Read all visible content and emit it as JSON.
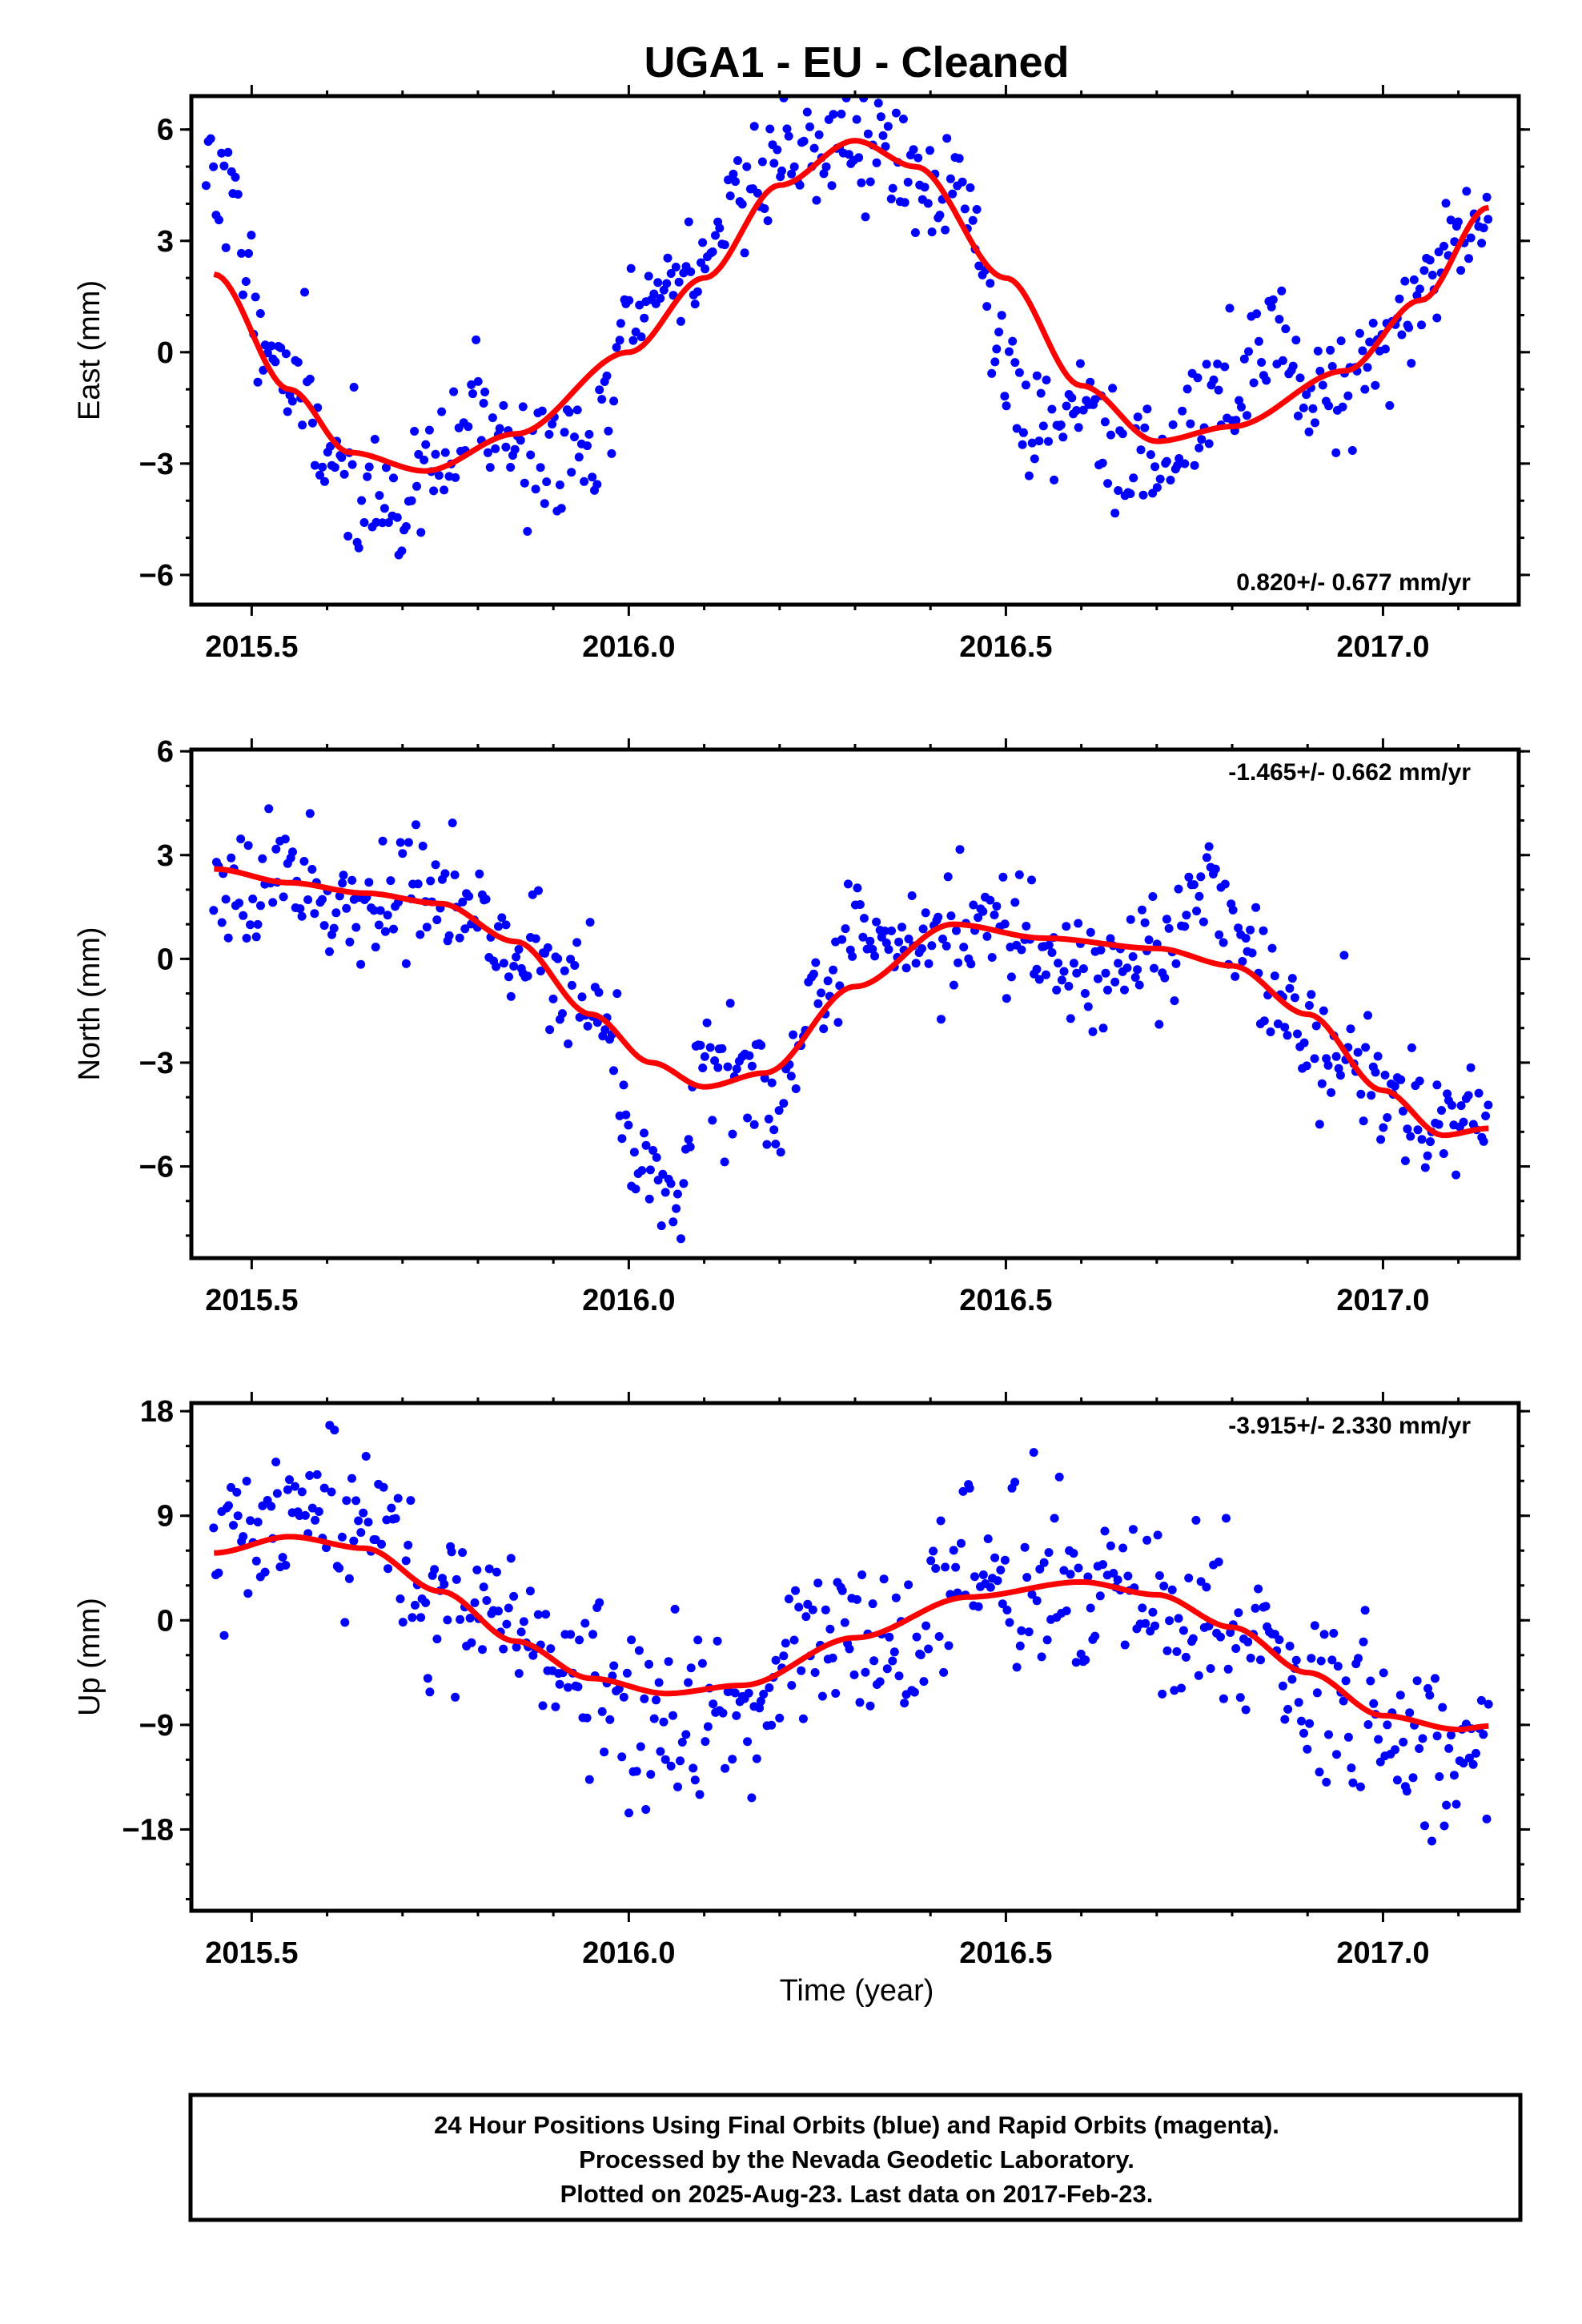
{
  "title": "UGA1  - EU - Cleaned",
  "chart_data": [
    {
      "type": "scatter",
      "xlabel": "",
      "ylabel": "East (mm)",
      "xlim": [
        2015.42,
        2017.18
      ],
      "ylim": [
        -6.8,
        6.9
      ],
      "xticks": [
        "2015.5",
        "2016.0",
        "2016.5",
        "2017.0"
      ],
      "yticks": [
        "6",
        "3",
        "0",
        "−3",
        "−6"
      ],
      "ytick_values": [
        6,
        3,
        0,
        -3,
        -6
      ],
      "rate_text": "0.820+/- 0.677 mm/yr",
      "rate_position": "bottom-right",
      "grid": false,
      "points_color": "#0000ff",
      "fit_color": "#ff0000",
      "fit_knots": [
        [
          2015.45,
          2.1
        ],
        [
          2015.55,
          -1.0
        ],
        [
          2015.63,
          -2.7
        ],
        [
          2015.73,
          -3.2
        ],
        [
          2015.85,
          -2.2
        ],
        [
          2016.0,
          0.0
        ],
        [
          2016.1,
          2.0
        ],
        [
          2016.2,
          4.5
        ],
        [
          2016.3,
          5.7
        ],
        [
          2016.38,
          5.0
        ],
        [
          2016.5,
          2.0
        ],
        [
          2016.6,
          -0.9
        ],
        [
          2016.7,
          -2.4
        ],
        [
          2016.8,
          -2.0
        ],
        [
          2016.95,
          -0.5
        ],
        [
          2017.05,
          1.4
        ],
        [
          2017.14,
          3.9
        ]
      ],
      "point_knots": [
        [
          2015.44,
          5.3
        ],
        [
          2015.47,
          4.3
        ],
        [
          2015.5,
          1.5
        ],
        [
          2015.55,
          -0.8
        ],
        [
          2015.6,
          -2.5
        ],
        [
          2015.65,
          -3.8
        ],
        [
          2015.7,
          -4.2
        ],
        [
          2015.75,
          -3.2
        ],
        [
          2015.8,
          -1.5
        ],
        [
          2015.85,
          -2.6
        ],
        [
          2015.9,
          -2.9
        ],
        [
          2015.95,
          -2.7
        ],
        [
          2016.0,
          0.7
        ],
        [
          2016.05,
          1.8
        ],
        [
          2016.1,
          2.5
        ],
        [
          2016.15,
          4.5
        ],
        [
          2016.2,
          5.3
        ],
        [
          2016.25,
          5.5
        ],
        [
          2016.3,
          5.7
        ],
        [
          2016.35,
          5.2
        ],
        [
          2016.4,
          4.4
        ],
        [
          2016.45,
          3.8
        ],
        [
          2016.5,
          -0.5
        ],
        [
          2016.55,
          -2.2
        ],
        [
          2016.6,
          -1.0
        ],
        [
          2016.65,
          -3.0
        ],
        [
          2016.7,
          -3.4
        ],
        [
          2016.75,
          -1.8
        ],
        [
          2016.8,
          -1.2
        ],
        [
          2016.85,
          0.5
        ],
        [
          2016.9,
          -0.7
        ],
        [
          2016.95,
          -0.8
        ],
        [
          2017.0,
          0.2
        ],
        [
          2017.05,
          1.5
        ],
        [
          2017.1,
          3.5
        ],
        [
          2017.14,
          3.3
        ]
      ],
      "scatter_spread": 0.85,
      "n_points": 520,
      "seed": 11
    },
    {
      "type": "scatter",
      "xlabel": "",
      "ylabel": "North (mm)",
      "xlim": [
        2015.42,
        2017.18
      ],
      "ylim": [
        -8.65,
        6.05
      ],
      "xticks": [
        "2015.5",
        "2016.0",
        "2016.5",
        "2017.0"
      ],
      "yticks": [
        "6",
        "3",
        "0",
        "−3",
        "−6"
      ],
      "ytick_values": [
        6,
        3,
        0,
        -3,
        -6
      ],
      "rate_text": "-1.465+/- 0.662 mm/yr",
      "rate_position": "top-right",
      "grid": false,
      "points_color": "#0000ff",
      "fit_color": "#ff0000",
      "fit_knots": [
        [
          2015.45,
          2.6
        ],
        [
          2015.55,
          2.2
        ],
        [
          2015.65,
          1.9
        ],
        [
          2015.75,
          1.6
        ],
        [
          2015.85,
          0.5
        ],
        [
          2015.95,
          -1.6
        ],
        [
          2016.03,
          -3.0
        ],
        [
          2016.1,
          -3.7
        ],
        [
          2016.18,
          -3.3
        ],
        [
          2016.3,
          -0.8
        ],
        [
          2016.43,
          1.0
        ],
        [
          2016.55,
          0.6
        ],
        [
          2016.7,
          0.3
        ],
        [
          2016.8,
          -0.2
        ],
        [
          2016.9,
          -1.6
        ],
        [
          2017.0,
          -3.8
        ],
        [
          2017.08,
          -5.1
        ],
        [
          2017.14,
          -4.9
        ]
      ],
      "point_knots": [
        [
          2015.45,
          2.5
        ],
        [
          2015.55,
          2.4
        ],
        [
          2015.65,
          1.6
        ],
        [
          2015.75,
          1.9
        ],
        [
          2015.85,
          0.3
        ],
        [
          2015.95,
          -1.0
        ],
        [
          2016.02,
          -5.5
        ],
        [
          2016.06,
          -7.2
        ],
        [
          2016.1,
          -2.5
        ],
        [
          2016.15,
          -3.0
        ],
        [
          2016.2,
          -4.5
        ],
        [
          2016.25,
          -1.5
        ],
        [
          2016.3,
          0.3
        ],
        [
          2016.4,
          0.5
        ],
        [
          2016.5,
          1.2
        ],
        [
          2016.6,
          -0.3
        ],
        [
          2016.7,
          0.6
        ],
        [
          2016.78,
          1.7
        ],
        [
          2016.85,
          -0.8
        ],
        [
          2016.9,
          -2.3
        ],
        [
          2016.95,
          -2.8
        ],
        [
          2017.0,
          -4.0
        ],
        [
          2017.08,
          -4.5
        ],
        [
          2017.14,
          -4.3
        ]
      ],
      "scatter_spread": 0.85,
      "n_points": 520,
      "seed": 23
    },
    {
      "type": "scatter",
      "xlabel": "Time (year)",
      "ylabel": "Up (mm)",
      "xlim": [
        2015.42,
        2017.18
      ],
      "ylim": [
        -25.0,
        18.7
      ],
      "xticks": [
        "2015.5",
        "2016.0",
        "2016.5",
        "2017.0"
      ],
      "yticks": [
        "18",
        "9",
        "0",
        "−9",
        "−18"
      ],
      "ytick_values": [
        18,
        9,
        0,
        -9,
        -18
      ],
      "rate_text": "-3.915+/- 2.330 mm/yr",
      "rate_position": "top-right",
      "grid": false,
      "points_color": "#0000ff",
      "fit_color": "#ff0000",
      "fit_knots": [
        [
          2015.45,
          5.8
        ],
        [
          2015.55,
          7.2
        ],
        [
          2015.65,
          6.2
        ],
        [
          2015.75,
          2.5
        ],
        [
          2015.85,
          -1.8
        ],
        [
          2015.95,
          -5.0
        ],
        [
          2016.05,
          -6.3
        ],
        [
          2016.15,
          -5.6
        ],
        [
          2016.3,
          -1.5
        ],
        [
          2016.45,
          2.0
        ],
        [
          2016.6,
          3.3
        ],
        [
          2016.7,
          2.2
        ],
        [
          2016.8,
          -0.6
        ],
        [
          2016.9,
          -4.5
        ],
        [
          2017.0,
          -8.2
        ],
        [
          2017.1,
          -9.4
        ],
        [
          2017.14,
          -9.1
        ]
      ],
      "point_knots": [
        [
          2015.45,
          6.0
        ],
        [
          2015.55,
          7.5
        ],
        [
          2015.65,
          8.5
        ],
        [
          2015.75,
          2.5
        ],
        [
          2015.85,
          -1.0
        ],
        [
          2015.95,
          -6.0
        ],
        [
          2016.05,
          -10.0
        ],
        [
          2016.15,
          -8.0
        ],
        [
          2016.25,
          -2.0
        ],
        [
          2016.35,
          -2.5
        ],
        [
          2016.45,
          4.0
        ],
        [
          2016.55,
          3.5
        ],
        [
          2016.65,
          2.0
        ],
        [
          2016.75,
          0.5
        ],
        [
          2016.85,
          -4.0
        ],
        [
          2016.95,
          -6.5
        ],
        [
          2017.05,
          -12.0
        ],
        [
          2017.14,
          -10.0
        ]
      ],
      "scatter_spread": 3.6,
      "n_points": 520,
      "seed": 37
    }
  ],
  "caption": {
    "line1": "24 Hour Positions Using Final Orbits (blue) and Rapid Orbits (magenta).",
    "line2": "Processed by the Nevada Geodetic Laboratory.",
    "line3": "Plotted on 2025-Aug-23. Last data on 2017-Feb-23."
  }
}
